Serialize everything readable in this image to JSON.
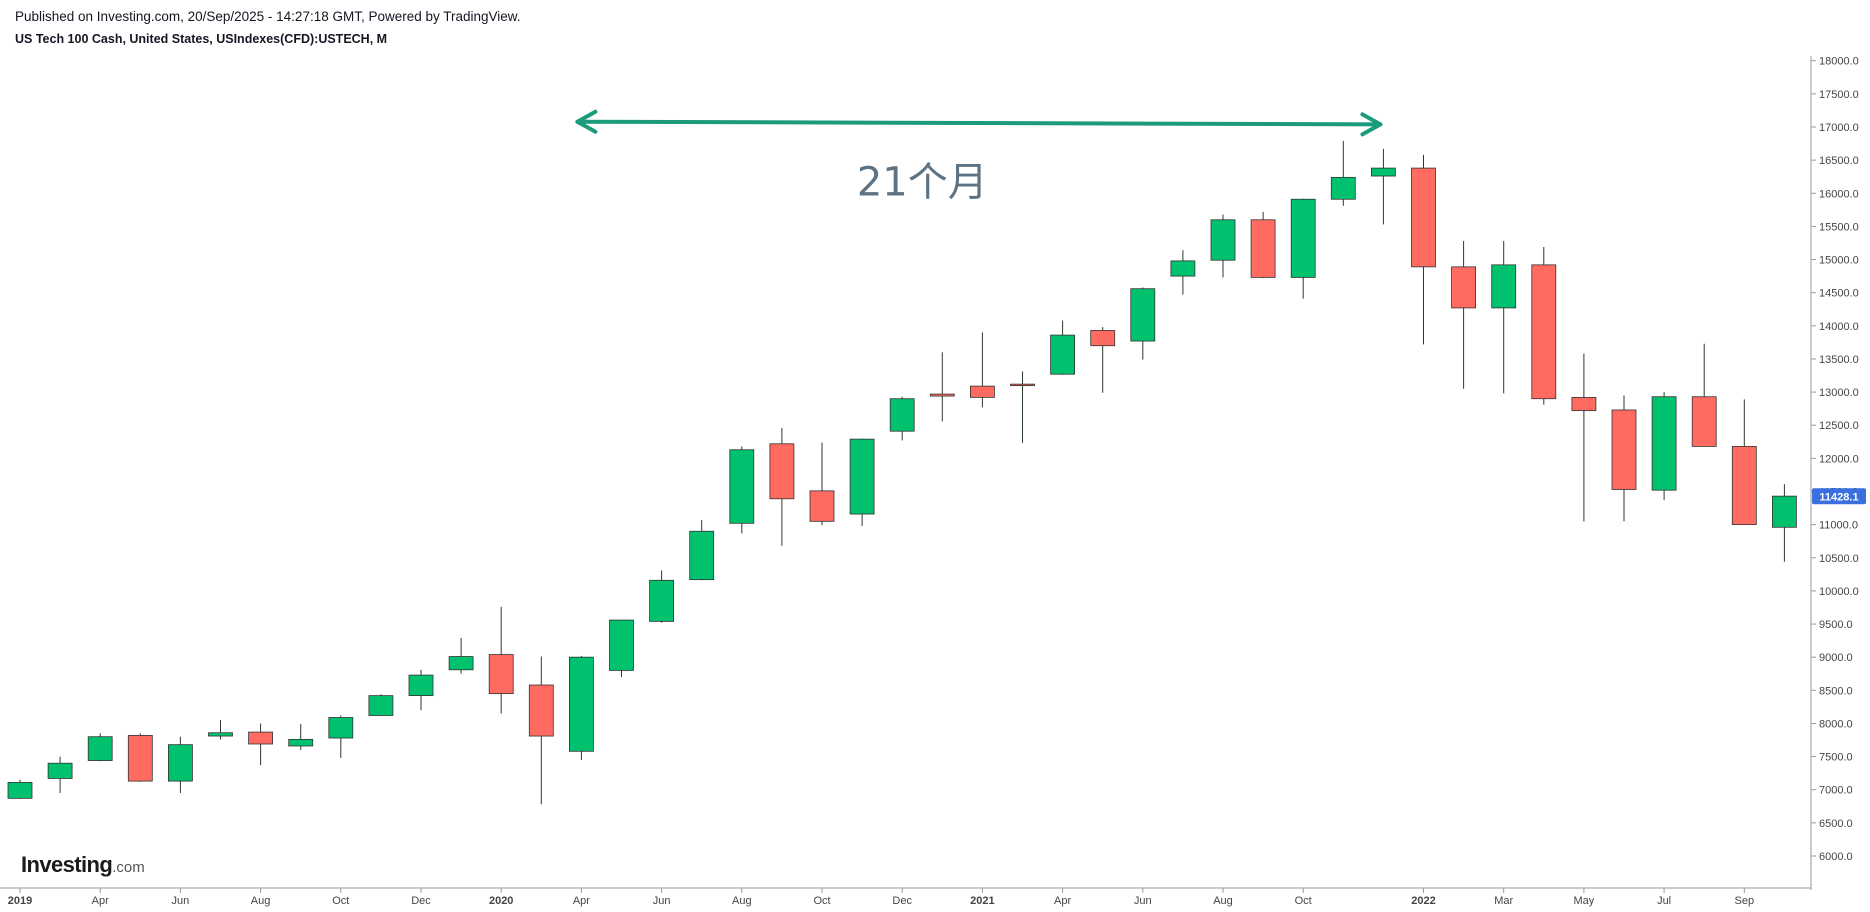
{
  "header": {
    "published": "Published on Investing.com, 20/Sep/2025 - 14:27:18 GMT, Powered by TradingView.",
    "symbol": "US Tech 100 Cash, United States, USIndexes(CFD):USTECH, M"
  },
  "logo": {
    "brand": "Investing",
    "suffix": ".com"
  },
  "colors": {
    "up": "#00c16e",
    "down": "#ff6b61",
    "wick": "#2a3b2a",
    "arrow": "#1b9a7c",
    "annotation": "#5d7383",
    "price_badge": "#3b6fe0",
    "axis": "#999999"
  },
  "chart_data": {
    "type": "candlestick",
    "title": "US Tech 100 Cash, United States, USIndexes(CFD):USTECH, M",
    "interval": "monthly",
    "ylim": [
      5625,
      18150
    ],
    "y_ticks": [
      "6000.0",
      "6500.0",
      "7000.0",
      "7500.0",
      "8000.0",
      "8500.0",
      "9000.0",
      "9500.0",
      "10000.0",
      "10500.0",
      "11000.0",
      "11500.0",
      "12000.0",
      "12500.0",
      "13000.0",
      "13500.0",
      "14000.0",
      "14500.0",
      "15000.0",
      "15500.0",
      "16000.0",
      "16500.0",
      "17000.0",
      "17500.0",
      "18000.0"
    ],
    "x_ticks": [
      {
        "label": "2019",
        "index": 0,
        "bold": true
      },
      {
        "label": "Apr",
        "index": 2
      },
      {
        "label": "Jun",
        "index": 4
      },
      {
        "label": "Aug",
        "index": 6
      },
      {
        "label": "Oct",
        "index": 8
      },
      {
        "label": "Dec",
        "index": 10
      },
      {
        "label": "2020",
        "index": 12,
        "bold": true
      },
      {
        "label": "Apr",
        "index": 14
      },
      {
        "label": "Jun",
        "index": 16
      },
      {
        "label": "Aug",
        "index": 18
      },
      {
        "label": "Oct",
        "index": 20
      },
      {
        "label": "Dec",
        "index": 22
      },
      {
        "label": "2021",
        "index": 24,
        "bold": true
      },
      {
        "label": "Apr",
        "index": 26
      },
      {
        "label": "Jun",
        "index": 28
      },
      {
        "label": "Aug",
        "index": 30
      },
      {
        "label": "Oct",
        "index": 32
      },
      {
        "label": "2022",
        "index": 35,
        "bold": true
      },
      {
        "label": "Mar",
        "index": 37
      },
      {
        "label": "May",
        "index": 39
      },
      {
        "label": "Jul",
        "index": 41
      },
      {
        "label": "Sep",
        "index": 43
      }
    ],
    "last_price": "11428.1",
    "candles": [
      {
        "o": 6870,
        "h": 7150,
        "l": 6860,
        "c": 7110
      },
      {
        "o": 7170,
        "h": 7500,
        "l": 6950,
        "c": 7400
      },
      {
        "o": 7440,
        "h": 7850,
        "l": 7430,
        "c": 7800
      },
      {
        "o": 7820,
        "h": 7850,
        "l": 7120,
        "c": 7130
      },
      {
        "o": 7130,
        "h": 7800,
        "l": 6950,
        "c": 7680
      },
      {
        "o": 7810,
        "h": 8050,
        "l": 7760,
        "c": 7860
      },
      {
        "o": 7870,
        "h": 8000,
        "l": 7370,
        "c": 7690
      },
      {
        "o": 7660,
        "h": 7990,
        "l": 7600,
        "c": 7760
      },
      {
        "o": 7780,
        "h": 8120,
        "l": 7480,
        "c": 8090
      },
      {
        "o": 8120,
        "h": 8440,
        "l": 8120,
        "c": 8420
      },
      {
        "o": 8420,
        "h": 8810,
        "l": 8200,
        "c": 8730
      },
      {
        "o": 8810,
        "h": 9290,
        "l": 8750,
        "c": 9010
      },
      {
        "o": 9040,
        "h": 9760,
        "l": 8150,
        "c": 8450
      },
      {
        "o": 8580,
        "h": 9010,
        "l": 6780,
        "c": 7810
      },
      {
        "o": 7580,
        "h": 9020,
        "l": 7450,
        "c": 9000
      },
      {
        "o": 8800,
        "h": 9560,
        "l": 8700,
        "c": 9560
      },
      {
        "o": 9540,
        "h": 10310,
        "l": 9520,
        "c": 10160
      },
      {
        "o": 10170,
        "h": 11070,
        "l": 10160,
        "c": 10900
      },
      {
        "o": 11020,
        "h": 12180,
        "l": 10870,
        "c": 12130
      },
      {
        "o": 12220,
        "h": 12460,
        "l": 10680,
        "c": 11390
      },
      {
        "o": 11510,
        "h": 12240,
        "l": 10990,
        "c": 11050
      },
      {
        "o": 11160,
        "h": 12300,
        "l": 10980,
        "c": 12290
      },
      {
        "o": 12410,
        "h": 12930,
        "l": 12270,
        "c": 12900
      },
      {
        "o": 12970,
        "h": 13600,
        "l": 12560,
        "c": 12940
      },
      {
        "o": 13090,
        "h": 13900,
        "l": 12770,
        "c": 12920
      },
      {
        "o": 13120,
        "h": 13310,
        "l": 12230,
        "c": 13100
      },
      {
        "o": 13270,
        "h": 14080,
        "l": 13260,
        "c": 13860
      },
      {
        "o": 13930,
        "h": 13980,
        "l": 12990,
        "c": 13700
      },
      {
        "o": 13770,
        "h": 14580,
        "l": 13490,
        "c": 14560
      },
      {
        "o": 14750,
        "h": 15140,
        "l": 14470,
        "c": 14980
      },
      {
        "o": 14990,
        "h": 15680,
        "l": 14730,
        "c": 15600
      },
      {
        "o": 15600,
        "h": 15720,
        "l": 14720,
        "c": 14730
      },
      {
        "o": 14730,
        "h": 15920,
        "l": 14410,
        "c": 15910
      },
      {
        "o": 15910,
        "h": 16790,
        "l": 15810,
        "c": 16240
      },
      {
        "o": 16260,
        "h": 16670,
        "l": 15530,
        "c": 16380
      },
      {
        "o": 16380,
        "h": 16580,
        "l": 13720,
        "c": 14890
      },
      {
        "o": 14890,
        "h": 15280,
        "l": 13050,
        "c": 14270
      },
      {
        "o": 14270,
        "h": 15280,
        "l": 12980,
        "c": 14920
      },
      {
        "o": 14920,
        "h": 15190,
        "l": 12810,
        "c": 12900
      },
      {
        "o": 12920,
        "h": 13580,
        "l": 11050,
        "c": 12720
      },
      {
        "o": 12730,
        "h": 12950,
        "l": 11050,
        "c": 11530
      },
      {
        "o": 11520,
        "h": 13000,
        "l": 11370,
        "c": 12930
      },
      {
        "o": 12930,
        "h": 13730,
        "l": 12180,
        "c": 12180
      },
      {
        "o": 12180,
        "h": 12890,
        "l": 11000,
        "c": 11000
      },
      {
        "o": 10960,
        "h": 11610,
        "l": 10440,
        "c": 11430
      }
    ],
    "annotations": [
      {
        "type": "double-arrow",
        "from": {
          "index": 14,
          "y": 17080
        },
        "to": {
          "index": 34,
          "y": 17040
        }
      },
      {
        "type": "text",
        "text": "21个月",
        "index": 23,
        "y": 16180
      }
    ]
  }
}
